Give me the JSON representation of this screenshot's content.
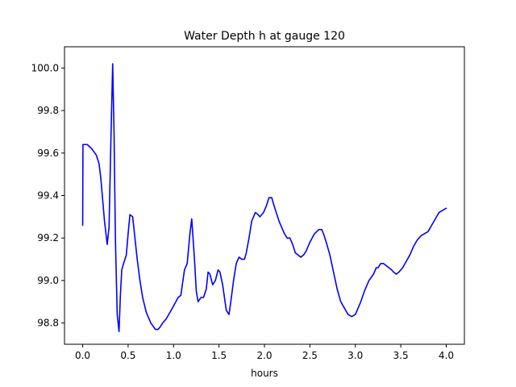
{
  "chart_data": {
    "type": "line",
    "title": "Water Depth h at gauge 120",
    "xlabel": "hours",
    "ylabel": "",
    "xlim": [
      -0.2,
      4.2
    ],
    "ylim": [
      98.7,
      100.1
    ],
    "xticks": [
      0.0,
      0.5,
      1.0,
      1.5,
      2.0,
      2.5,
      3.0,
      3.5,
      4.0
    ],
    "xtick_labels": [
      "0.0",
      "0.5",
      "1.0",
      "1.5",
      "2.0",
      "2.5",
      "3.0",
      "3.5",
      "4.0"
    ],
    "yticks": [
      98.8,
      99.0,
      99.2,
      99.4,
      99.6,
      99.8,
      100.0
    ],
    "ytick_labels": [
      "98.8",
      "99.0",
      "99.2",
      "99.4",
      "99.6",
      "99.8",
      "100.0"
    ],
    "grid": false,
    "legend": "none",
    "series": [
      {
        "color": "#0000ff",
        "x": [
          0.0,
          0.003,
          0.05,
          0.1,
          0.15,
          0.18,
          0.2,
          0.24,
          0.27,
          0.29,
          0.31,
          0.33,
          0.345,
          0.36,
          0.38,
          0.4,
          0.415,
          0.43,
          0.45,
          0.48,
          0.5,
          0.52,
          0.55,
          0.58,
          0.6,
          0.63,
          0.66,
          0.7,
          0.75,
          0.8,
          0.83,
          0.85,
          0.88,
          0.92,
          0.96,
          1.0,
          1.05,
          1.08,
          1.12,
          1.15,
          1.18,
          1.2,
          1.23,
          1.25,
          1.27,
          1.3,
          1.33,
          1.36,
          1.38,
          1.4,
          1.43,
          1.46,
          1.49,
          1.51,
          1.54,
          1.56,
          1.58,
          1.61,
          1.63,
          1.66,
          1.69,
          1.72,
          1.75,
          1.78,
          1.8,
          1.83,
          1.86,
          1.9,
          1.93,
          1.95,
          1.97,
          1.99,
          2.02,
          2.05,
          2.08,
          2.1,
          2.13,
          2.16,
          2.19,
          2.22,
          2.25,
          2.28,
          2.31,
          2.34,
          2.37,
          2.4,
          2.43,
          2.46,
          2.5,
          2.55,
          2.6,
          2.63,
          2.65,
          2.68,
          2.72,
          2.76,
          2.8,
          2.84,
          2.88,
          2.92,
          2.96,
          3.0,
          3.03,
          3.06,
          3.1,
          3.15,
          3.2,
          3.23,
          3.25,
          3.28,
          3.31,
          3.34,
          3.37,
          3.4,
          3.42,
          3.45,
          3.48,
          3.52,
          3.56,
          3.6,
          3.64,
          3.68,
          3.72,
          3.76,
          3.8,
          3.84,
          3.88,
          3.92,
          3.96,
          4.0
        ],
        "y": [
          99.26,
          99.64,
          99.64,
          99.62,
          99.59,
          99.55,
          99.48,
          99.28,
          99.17,
          99.25,
          99.65,
          100.02,
          99.7,
          99.2,
          98.84,
          98.76,
          98.93,
          99.05,
          99.08,
          99.12,
          99.22,
          99.31,
          99.3,
          99.18,
          99.1,
          99.0,
          98.92,
          98.85,
          98.8,
          98.77,
          98.77,
          98.78,
          98.8,
          98.82,
          98.85,
          98.88,
          98.92,
          98.93,
          99.05,
          99.08,
          99.22,
          99.29,
          99.1,
          98.95,
          98.9,
          98.92,
          98.92,
          98.96,
          99.04,
          99.03,
          98.98,
          99.0,
          99.05,
          99.04,
          98.98,
          98.92,
          98.86,
          98.84,
          98.9,
          99.0,
          99.08,
          99.11,
          99.1,
          99.1,
          99.13,
          99.2,
          99.28,
          99.32,
          99.31,
          99.3,
          99.31,
          99.32,
          99.35,
          99.39,
          99.39,
          99.36,
          99.32,
          99.28,
          99.25,
          99.22,
          99.2,
          99.2,
          99.17,
          99.13,
          99.12,
          99.11,
          99.12,
          99.14,
          99.18,
          99.22,
          99.24,
          99.24,
          99.22,
          99.18,
          99.12,
          99.04,
          98.96,
          98.9,
          98.87,
          98.84,
          98.83,
          98.84,
          98.87,
          98.9,
          98.95,
          99.0,
          99.03,
          99.06,
          99.06,
          99.08,
          99.08,
          99.07,
          99.06,
          99.05,
          99.04,
          99.03,
          99.04,
          99.06,
          99.09,
          99.12,
          99.16,
          99.19,
          99.21,
          99.22,
          99.23,
          99.26,
          99.29,
          99.32,
          99.33,
          99.34
        ]
      }
    ]
  }
}
